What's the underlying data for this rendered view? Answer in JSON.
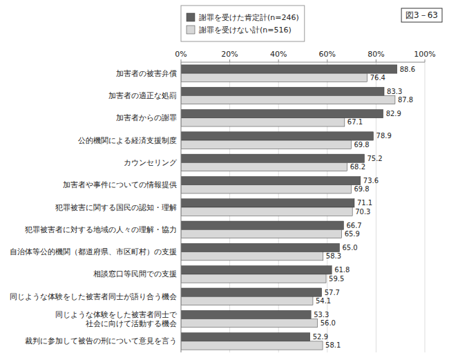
{
  "chart_data": {
    "type": "bar",
    "orientation": "horizontal",
    "title": "図3－63",
    "categories": [
      "加害者の被害弁償",
      "加害者の適正な処罰",
      "加害者からの謝罪",
      "公的機関による経済支援制度",
      "カウンセリング",
      "加害者や事件についての情報提供",
      "犯罪被害に関する国民の認知・理解",
      "犯罪被害者に対する地域の人々の理解・協力",
      "自治体等公的機関（都道府県、市区町村）の支援",
      "相談窓口等民間での支援",
      "同じような体験をした被害者同士が語り合う機会",
      "同じような体験をした被害者同士で\n社会に向けて活動する機会",
      "裁判に参加して被告の刑について意見を言う"
    ],
    "series": [
      {
        "name": "謝罪を受けた肯定計(n=246)",
        "color": "#606060",
        "values": [
          88.6,
          83.3,
          82.9,
          78.9,
          75.2,
          73.6,
          71.1,
          66.7,
          65.0,
          61.8,
          57.7,
          53.3,
          52.9
        ],
        "value_labels": [
          "88.6",
          "83.3",
          "82.9",
          "78.9",
          "75.2",
          "73.6",
          "71.1",
          "66.7",
          "65.0",
          "61.8",
          "57.7",
          "53.3",
          "52.9"
        ]
      },
      {
        "name": "謝罪を受けない計(n=516)",
        "color": "#d8d8d8",
        "values": [
          76.4,
          87.8,
          67.1,
          69.8,
          68.2,
          69.8,
          70.3,
          65.9,
          58.3,
          59.5,
          54.1,
          56.0,
          58.1
        ],
        "value_labels": [
          "76.4",
          "87.8",
          "67.1",
          "69.8",
          "68.2",
          "69.8",
          "70.3",
          "65.9",
          "58.3",
          "59.5",
          "54.1",
          "56.0",
          "58.1"
        ]
      }
    ],
    "xlim": [
      0,
      100
    ],
    "xticks": [
      {
        "value": 0,
        "label": "0%"
      },
      {
        "value": 20,
        "label": "20%"
      },
      {
        "value": 40,
        "label": "40%"
      },
      {
        "value": 60,
        "label": "60%"
      },
      {
        "value": 80,
        "label": "80%"
      },
      {
        "value": 100,
        "label": "100%"
      }
    ],
    "grid": true,
    "legend": "upper left",
    "data_labels": true
  }
}
